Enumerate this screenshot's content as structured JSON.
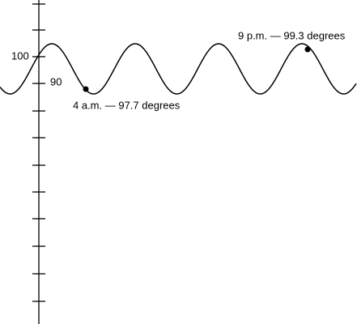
{
  "axis": {
    "tick_labels": [
      "100",
      "90"
    ]
  },
  "annotations": [
    "4 a.m. — 97.7 degrees",
    "9 p.m. — 99.3 degrees"
  ]
}
